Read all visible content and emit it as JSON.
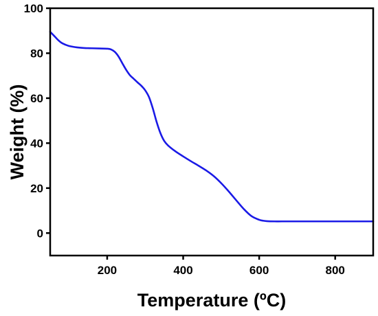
{
  "chart_data": {
    "type": "line",
    "title": "",
    "xlabel": "Temperature (ºC)",
    "ylabel": "Weight (%)",
    "xlim": [
      50,
      900
    ],
    "ylim": [
      -10,
      100
    ],
    "x_ticks": [
      200,
      400,
      600,
      800
    ],
    "x_tick_labels": [
      "200",
      "400",
      "600",
      "800"
    ],
    "y_ticks": [
      0,
      20,
      40,
      60,
      80,
      100
    ],
    "y_tick_labels": [
      "0",
      "20",
      "40",
      "60",
      "80",
      "100"
    ],
    "grid": false,
    "legend": "none",
    "series": [
      {
        "color": "#1a1ae6",
        "x": [
          50,
          60,
          70,
          80,
          90,
          100,
          120,
          140,
          160,
          180,
          200,
          210,
          220,
          230,
          240,
          250,
          260,
          270,
          280,
          290,
          300,
          310,
          320,
          330,
          340,
          350,
          360,
          380,
          400,
          420,
          440,
          460,
          480,
          500,
          520,
          540,
          560,
          580,
          600,
          610,
          620,
          640,
          660,
          700,
          750,
          800,
          850,
          900
        ],
        "y": [
          89.5,
          87.8,
          86.0,
          84.6,
          83.8,
          83.2,
          82.6,
          82.3,
          82.2,
          82.1,
          82.0,
          81.7,
          80.6,
          78.5,
          75.5,
          72.6,
          70.2,
          68.6,
          67.0,
          65.5,
          63.5,
          60.5,
          55.5,
          49.5,
          44.5,
          41.0,
          39.0,
          36.3,
          34.1,
          32.0,
          30.0,
          27.9,
          25.4,
          22.2,
          18.5,
          14.5,
          10.6,
          7.5,
          5.9,
          5.5,
          5.3,
          5.2,
          5.2,
          5.2,
          5.2,
          5.2,
          5.2,
          5.2
        ]
      }
    ]
  }
}
